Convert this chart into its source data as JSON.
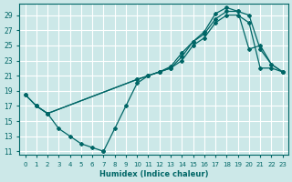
{
  "xlabel": "Humidex (Indice chaleur)",
  "xlim": [
    -0.5,
    23.5
  ],
  "ylim": [
    10.5,
    30.5
  ],
  "xticks": [
    0,
    1,
    2,
    3,
    4,
    5,
    6,
    7,
    8,
    9,
    10,
    11,
    12,
    13,
    14,
    15,
    16,
    17,
    18,
    19,
    20,
    21,
    22,
    23
  ],
  "yticks": [
    11,
    13,
    15,
    17,
    19,
    21,
    23,
    25,
    27,
    29
  ],
  "bg_color": "#cce8e8",
  "grid_color": "#ffffff",
  "line_color": "#006666",
  "line1_x": [
    1,
    2,
    3,
    4,
    5,
    6,
    7,
    7,
    8,
    9,
    10,
    11,
    12,
    13,
    14,
    15,
    16,
    17,
    18,
    19,
    20,
    21,
    22,
    23
  ],
  "line1_y": [
    17,
    16,
    14,
    13,
    12,
    11.5,
    11,
    11,
    14,
    17,
    20,
    21,
    21.5,
    22,
    23,
    25,
    26,
    28,
    29,
    29,
    28,
    22,
    22,
    21.5
  ],
  "line2_x": [
    0,
    1,
    2,
    10,
    11,
    12,
    13,
    14,
    15,
    16,
    17,
    18,
    19,
    20,
    21,
    22,
    23
  ],
  "line2_y": [
    18.5,
    17,
    16,
    20.5,
    21,
    21.5,
    22,
    23.5,
    25.5,
    26.5,
    28.5,
    29.5,
    29.5,
    29,
    24.5,
    22.5,
    21.5
  ],
  "line3_x": [
    0,
    1,
    2,
    10,
    11,
    12,
    13,
    14,
    15,
    16,
    17,
    18,
    19,
    20,
    21,
    22,
    23
  ],
  "line3_y": [
    18.5,
    17,
    16,
    20.5,
    21,
    21.5,
    22.2,
    24,
    25.5,
    26.8,
    29.2,
    30,
    29.5,
    24.5,
    25,
    22.5,
    21.5
  ]
}
